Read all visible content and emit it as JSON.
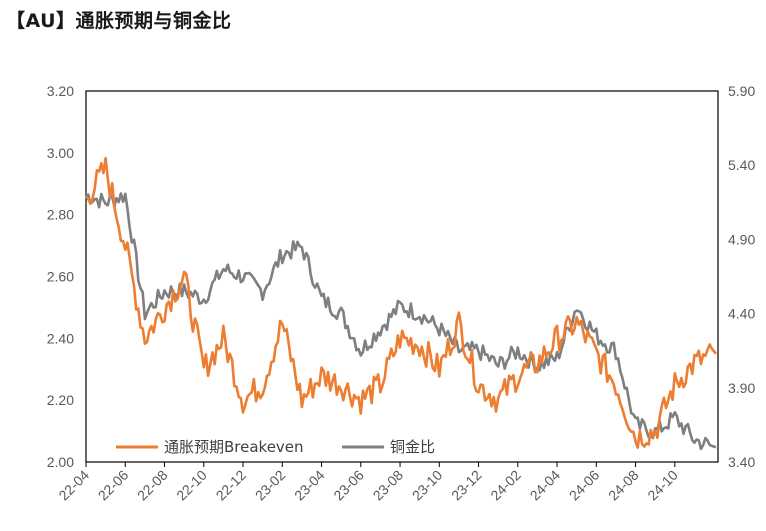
{
  "title": "【AU】通胀预期与铜金比",
  "chart_data": {
    "type": "line",
    "title": "【AU】通胀预期与铜金比",
    "x_tick_labels": [
      "22-04",
      "22-06",
      "22-08",
      "22-10",
      "22-12",
      "23-02",
      "23-04",
      "23-06",
      "23-08",
      "23-10",
      "23-12",
      "24-02",
      "24-04",
      "24-06",
      "24-08",
      "24-10"
    ],
    "x_range": [
      "2022-04",
      "2024-12"
    ],
    "y_left": {
      "min": 2.0,
      "max": 3.2,
      "ticks": [
        "2.00",
        "2.20",
        "2.40",
        "2.60",
        "2.80",
        "3.00",
        "3.20"
      ]
    },
    "y_right": {
      "min": 3.4,
      "max": 5.9,
      "ticks": [
        "3.40",
        "3.90",
        "4.40",
        "4.90",
        "5.40",
        "5.90"
      ]
    },
    "legend_position": "bottom-left",
    "series": [
      {
        "name": "通胀预期Breakeven",
        "color": "#ED7D31",
        "axis": "left",
        "x": [
          "22-04",
          "22-05",
          "22-06",
          "22-07",
          "22-08",
          "22-09",
          "22-10",
          "22-11",
          "22-12",
          "23-01",
          "23-02",
          "23-03",
          "23-04",
          "23-05",
          "23-06",
          "23-07",
          "23-08",
          "23-09",
          "23-10",
          "23-11",
          "23-12",
          "24-01",
          "24-02",
          "24-03",
          "24-04",
          "24-05",
          "24-06",
          "24-07",
          "24-08",
          "24-09",
          "24-10",
          "24-11",
          "24-12"
        ],
        "values": [
          2.85,
          2.95,
          2.7,
          2.4,
          2.5,
          2.6,
          2.3,
          2.4,
          2.2,
          2.25,
          2.45,
          2.2,
          2.28,
          2.25,
          2.2,
          2.25,
          2.4,
          2.38,
          2.3,
          2.45,
          2.25,
          2.2,
          2.28,
          2.32,
          2.4,
          2.45,
          2.35,
          2.25,
          2.08,
          2.1,
          2.25,
          2.32,
          2.35
        ]
      },
      {
        "name": "铜金比",
        "color": "#7F7F7F",
        "axis": "right",
        "x": [
          "22-04",
          "22-05",
          "22-06",
          "22-07",
          "22-08",
          "22-09",
          "22-10",
          "22-11",
          "22-12",
          "23-01",
          "23-02",
          "23-03",
          "23-04",
          "23-05",
          "23-06",
          "23-07",
          "23-08",
          "23-09",
          "23-10",
          "23-11",
          "23-12",
          "24-01",
          "24-02",
          "24-03",
          "24-04",
          "24-05",
          "24-06",
          "24-07",
          "24-08",
          "24-09",
          "24-10",
          "24-11",
          "24-12"
        ],
        "values": [
          5.2,
          5.15,
          5.2,
          4.4,
          4.55,
          4.55,
          4.5,
          4.7,
          4.65,
          4.55,
          4.8,
          4.85,
          4.5,
          4.4,
          4.15,
          4.3,
          4.45,
          4.4,
          4.3,
          4.15,
          4.15,
          4.05,
          4.15,
          4.05,
          4.1,
          4.45,
          4.25,
          4.15,
          3.65,
          3.6,
          3.7,
          3.55,
          3.5
        ]
      }
    ]
  }
}
